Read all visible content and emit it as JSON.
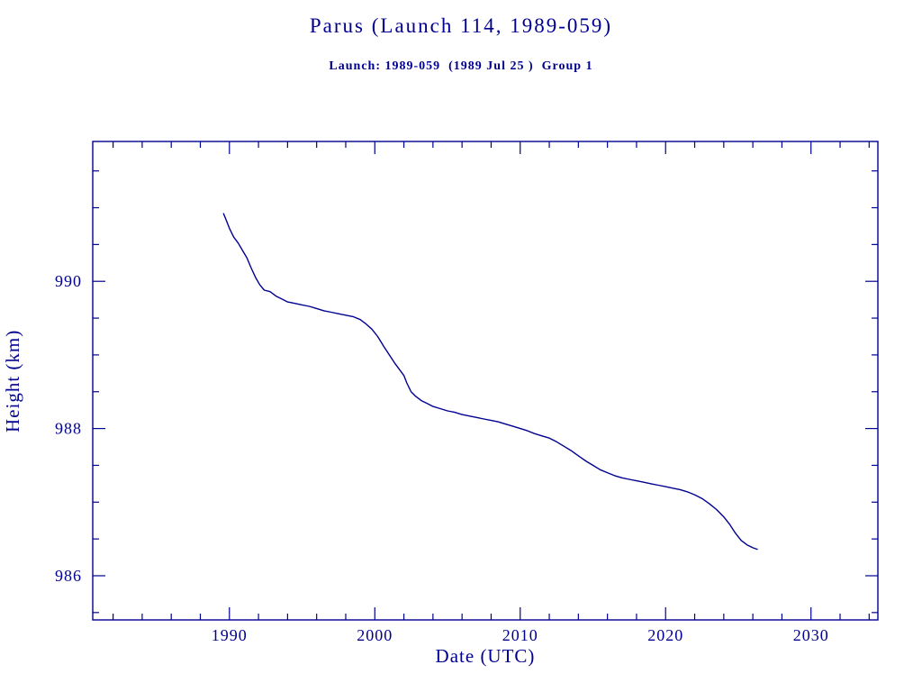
{
  "colors": {
    "accent": "#000090",
    "background": "#ffffff"
  },
  "chart_data": {
    "type": "line",
    "title": "Parus (Launch 114, 1989-059)",
    "subtitle": "Launch: 1989-059  (1989 Jul 25 )  Group 1",
    "xlabel": "Date (UTC)",
    "ylabel": "Height (km)",
    "xlim": [
      1980.6,
      2034.6
    ],
    "ylim": [
      985.4,
      991.9
    ],
    "xticks": [
      1990,
      2000,
      2010,
      2020,
      2030
    ],
    "yticks": [
      986,
      988,
      990
    ],
    "x_minor_step": 2,
    "y_minor_step": 0.5,
    "grid": false,
    "legend": false,
    "line_color": "#000090",
    "series": [
      {
        "name": "height_km",
        "x": [
          1989.6,
          1989.8,
          1990.0,
          1990.3,
          1990.6,
          1990.9,
          1991.2,
          1991.5,
          1991.8,
          1992.1,
          1992.4,
          1992.8,
          1993.2,
          1993.6,
          1994.0,
          1994.5,
          1995.0,
          1995.5,
          1996.0,
          1996.5,
          1997.0,
          1997.5,
          1998.0,
          1998.5,
          1999.0,
          1999.4,
          1999.8,
          2000.2,
          2000.6,
          2001.0,
          2001.4,
          2001.7,
          2002.0,
          2002.2,
          2002.5,
          2002.8,
          2003.2,
          2003.6,
          2004.0,
          2004.5,
          2005.0,
          2005.5,
          2006.0,
          2006.5,
          2007.0,
          2007.5,
          2008.0,
          2008.5,
          2009.0,
          2009.5,
          2010.0,
          2010.5,
          2011.0,
          2011.5,
          2012.0,
          2012.5,
          2013.0,
          2013.5,
          2014.0,
          2014.5,
          2015.0,
          2015.5,
          2016.0,
          2016.5,
          2017.0,
          2017.5,
          2018.0,
          2018.5,
          2019.0,
          2019.5,
          2020.0,
          2020.5,
          2021.0,
          2021.5,
          2022.0,
          2022.5,
          2023.0,
          2023.5,
          2024.0,
          2024.4,
          2024.8,
          2025.2,
          2025.6,
          2026.0,
          2026.3
        ],
        "y": [
          990.92,
          990.82,
          990.72,
          990.6,
          990.52,
          990.42,
          990.32,
          990.18,
          990.05,
          989.95,
          989.88,
          989.86,
          989.8,
          989.76,
          989.72,
          989.7,
          989.68,
          989.66,
          989.63,
          989.6,
          989.58,
          989.56,
          989.54,
          989.52,
          989.48,
          989.42,
          989.35,
          989.25,
          989.12,
          989.0,
          988.88,
          988.8,
          988.72,
          988.62,
          988.5,
          988.44,
          988.38,
          988.34,
          988.3,
          988.27,
          988.24,
          988.22,
          988.19,
          988.17,
          988.15,
          988.13,
          988.11,
          988.09,
          988.06,
          988.03,
          988.0,
          987.97,
          987.93,
          987.9,
          987.87,
          987.82,
          987.76,
          987.7,
          987.63,
          987.56,
          987.5,
          987.44,
          987.4,
          987.36,
          987.33,
          987.31,
          987.29,
          987.27,
          987.25,
          987.23,
          987.21,
          987.19,
          987.17,
          987.14,
          987.1,
          987.05,
          986.98,
          986.9,
          986.8,
          986.7,
          986.58,
          986.48,
          986.42,
          986.38,
          986.36
        ]
      }
    ]
  }
}
